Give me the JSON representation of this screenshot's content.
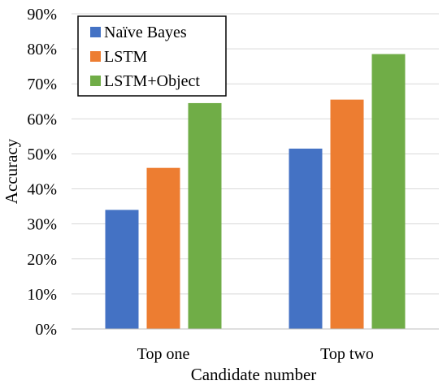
{
  "chart_data": {
    "type": "bar",
    "categories": [
      "Top one",
      "Top two"
    ],
    "series": [
      {
        "name": "Naïve Bayes",
        "color": "#4472C4",
        "values": [
          34,
          51.5
        ]
      },
      {
        "name": "LSTM",
        "color": "#ED7D31",
        "values": [
          46,
          65.5
        ]
      },
      {
        "name": "LSTM+Object",
        "color": "#70AD47",
        "values": [
          64.5,
          78.5
        ]
      }
    ],
    "y_ticks": [
      "0%",
      "10%",
      "20%",
      "30%",
      "40%",
      "50%",
      "60%",
      "70%",
      "80%",
      "90%"
    ],
    "ylim": [
      0,
      90
    ],
    "xlabel": "Candidate number",
    "ylabel": "Accuracy",
    "grid": true,
    "legend_position": "top-left"
  }
}
